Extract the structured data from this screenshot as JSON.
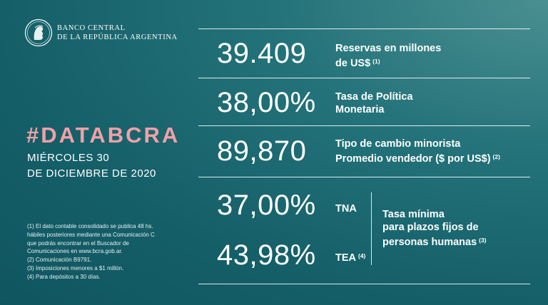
{
  "header": {
    "bank_line1": "BANCO CENTRAL",
    "bank_line2": "DE LA REPÚBLICA ARGENTINA",
    "logo_icon": "bcra-seal-icon"
  },
  "hashtag": "#DATABCRA",
  "date": {
    "line1": "MIÉRCOLES 30",
    "line2": "DE DICIEMBRE DE 2020"
  },
  "indicators": [
    {
      "value": "39.409",
      "label_line1": "Reservas en millones",
      "label_line2": "de US$",
      "note": "(1)"
    },
    {
      "value": "38,00%",
      "label_line1": "Tasa de Política",
      "label_line2": "Monetaria",
      "note": ""
    },
    {
      "value": "89,870",
      "label_line1": "Tipo de cambio minorista",
      "label_line2": "Promedio vendedor  ($ por US$)",
      "note": "(2)"
    }
  ],
  "plazo_fijo": {
    "tna_value": "37,00%",
    "tna_label": "TNA",
    "tea_value": "43,98%",
    "tea_label": "TEA",
    "tea_note": "(4)",
    "desc_line1": "Tasa mínima",
    "desc_line2": "para plazos fijos de",
    "desc_line3": "personas humanas",
    "desc_note": "(3)"
  },
  "footnotes": [
    "(1) El dato contable consolidado se publica 48 hs.",
    "hábiles posteriores mediante una Comunicación C",
    "que podrás encontrar en el Buscador de",
    "Comunicaciones en www.bcra.gob.ar.",
    "(2) Comunicación B9791.",
    "(3) Imposiciones menores a $1 millón.",
    "(4) Para depósitos a 30 días."
  ],
  "colors": {
    "background": "#1a6a72",
    "accent": "#f2a0a6",
    "text": "#ffffff"
  }
}
